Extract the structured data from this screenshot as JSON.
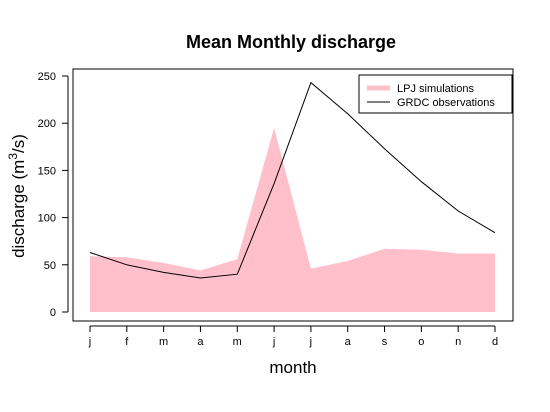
{
  "chart_data": {
    "type": "area",
    "title": "Mean Monthly discharge",
    "xlabel": "month",
    "ylabel": "discharge (m3/s)",
    "ylabel_main": "discharge (m",
    "ylabel_sup": "3",
    "ylabel_tail": "/s)",
    "categories": [
      "j",
      "f",
      "m",
      "a",
      "m",
      "j",
      "j",
      "a",
      "s",
      "o",
      "n",
      "d"
    ],
    "ylim": [
      0,
      250
    ],
    "yticks": [
      0,
      50,
      100,
      150,
      200,
      250
    ],
    "grid": false,
    "legend_position": "top-right",
    "series": [
      {
        "name": "LPJ simulations",
        "kind": "area",
        "color": "#ffc0cb",
        "values": [
          59,
          58,
          52,
          44,
          56,
          195,
          46,
          54,
          67,
          66,
          62,
          62
        ]
      },
      {
        "name": "GRDC observations",
        "kind": "line",
        "color": "#000000",
        "values": [
          63,
          50,
          42,
          36,
          40,
          136,
          243,
          210,
          173,
          138,
          107,
          84
        ]
      }
    ]
  }
}
